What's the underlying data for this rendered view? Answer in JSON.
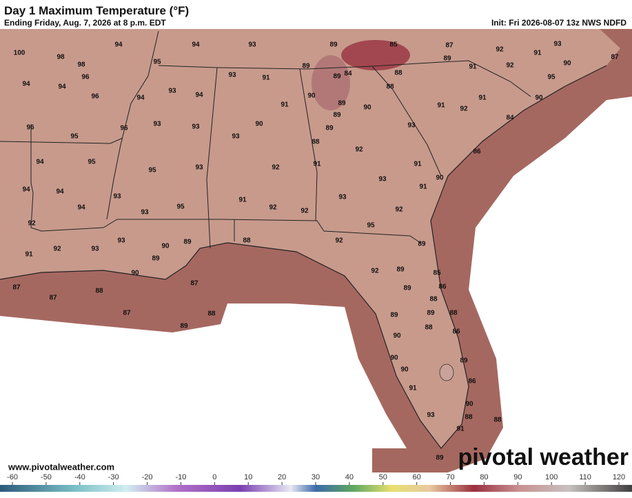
{
  "header": {
    "title": "Day 1 Maximum Temperature (°F)",
    "subtitle": "Ending Friday, Aug. 7, 2026 at 8 p.m. EDT",
    "init": "Init: Fri 2026-08-07 13z NWS NDFD"
  },
  "labels": [
    "100",
    "98",
    "94",
    "94",
    "93",
    "89",
    "85",
    "87",
    "92",
    "91",
    "93",
    "87",
    "98",
    "95",
    "89",
    "89",
    "84",
    "88",
    "89",
    "91",
    "92",
    "90",
    "95",
    "94",
    "94",
    "96",
    "93",
    "91",
    "88",
    "96",
    "93",
    "94",
    "94",
    "90",
    "91",
    "89",
    "90",
    "91",
    "92",
    "91",
    "90",
    "96",
    "96",
    "93",
    "93",
    "90",
    "89",
    "89",
    "93",
    "84",
    "95",
    "93",
    "88",
    "92",
    "86",
    "94",
    "95",
    "95",
    "93",
    "92",
    "91",
    "93",
    "91",
    "94",
    "94",
    "93",
    "91",
    "90",
    "94",
    "93",
    "95",
    "91",
    "92",
    "92",
    "93",
    "92",
    "92",
    "95",
    "93",
    "92",
    "89",
    "92",
    "93",
    "90",
    "89",
    "88",
    "91",
    "89",
    "92",
    "89",
    "90",
    "85",
    "87",
    "87",
    "88",
    "89",
    "86",
    "87",
    "88",
    "87",
    "88",
    "89",
    "89",
    "88",
    "89",
    "88",
    "86",
    "90",
    "90",
    "89",
    "90",
    "86",
    "91",
    "90",
    "93",
    "88",
    "88",
    "91",
    "89"
  ],
  "footer": {
    "website": "www.pivotalweather.com",
    "logo": "pivotal weather"
  },
  "colorbar": {
    "ticks": [
      -60,
      -50,
      -40,
      -30,
      -20,
      -10,
      0,
      10,
      20,
      30,
      40,
      50,
      60,
      70,
      80,
      90,
      100,
      110,
      120
    ]
  }
}
